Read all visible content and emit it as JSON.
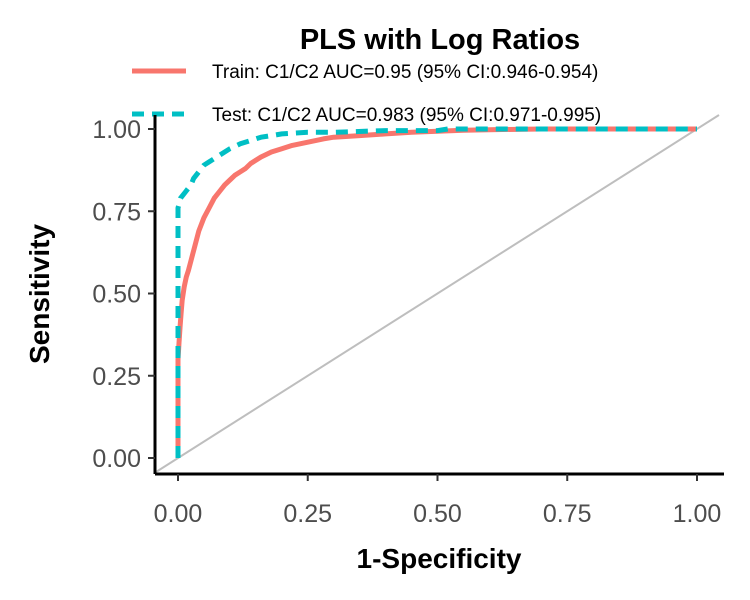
{
  "chart_data": {
    "type": "line",
    "title": "PLS with Log Ratios",
    "xlabel": "1-Specificity",
    "ylabel": "Sensitivity",
    "xlim": [
      0,
      1
    ],
    "ylim": [
      0,
      1
    ],
    "x_ticks": [
      "0.00",
      "0.25",
      "0.50",
      "0.75",
      "1.00"
    ],
    "y_ticks": [
      "0.00",
      "0.25",
      "0.50",
      "0.75",
      "1.00"
    ],
    "grid": false,
    "legend_position": "top",
    "reference_line": {
      "x": [
        0,
        1
      ],
      "y": [
        0,
        1
      ],
      "color": "#bebebe"
    },
    "series": [
      {
        "name": "Train: C1/C2 AUC=0.95 (95% CI:0.946-0.954)",
        "color": "#f8766d",
        "dash": "solid",
        "x": [
          0,
          0,
          0.002,
          0.004,
          0.006,
          0.008,
          0.012,
          0.016,
          0.02,
          0.025,
          0.03,
          0.035,
          0.04,
          0.05,
          0.06,
          0.07,
          0.08,
          0.09,
          0.1,
          0.11,
          0.12,
          0.13,
          0.14,
          0.15,
          0.16,
          0.18,
          0.2,
          0.22,
          0.25,
          0.28,
          0.3,
          0.35,
          0.4,
          0.45,
          0.5,
          0.55,
          0.6,
          0.7,
          0.8,
          0.9,
          1.0
        ],
        "y": [
          0,
          0.3,
          0.35,
          0.4,
          0.44,
          0.48,
          0.52,
          0.55,
          0.57,
          0.6,
          0.63,
          0.66,
          0.69,
          0.73,
          0.76,
          0.79,
          0.81,
          0.83,
          0.845,
          0.86,
          0.87,
          0.88,
          0.895,
          0.905,
          0.915,
          0.93,
          0.94,
          0.95,
          0.96,
          0.97,
          0.975,
          0.98,
          0.985,
          0.99,
          0.993,
          0.996,
          0.998,
          1.0,
          1.0,
          1.0,
          1.0
        ]
      },
      {
        "name": "Test: C1/C2 AUC=0.983 (95% CI:0.971-0.995)",
        "color": "#00bfc4",
        "dash": "dashed",
        "x": [
          0,
          0,
          0.005,
          0.01,
          0.015,
          0.02,
          0.025,
          0.03,
          0.04,
          0.05,
          0.06,
          0.08,
          0.1,
          0.12,
          0.14,
          0.16,
          0.18,
          0.2,
          0.25,
          0.3,
          0.4,
          0.5,
          0.52,
          0.6,
          0.8,
          1.0
        ],
        "y": [
          0,
          0.76,
          0.79,
          0.8,
          0.81,
          0.82,
          0.83,
          0.85,
          0.87,
          0.89,
          0.9,
          0.92,
          0.94,
          0.955,
          0.965,
          0.975,
          0.98,
          0.985,
          0.99,
          0.99,
          0.995,
          0.995,
          1.0,
          1.0,
          1.0,
          1.0
        ]
      }
    ]
  }
}
